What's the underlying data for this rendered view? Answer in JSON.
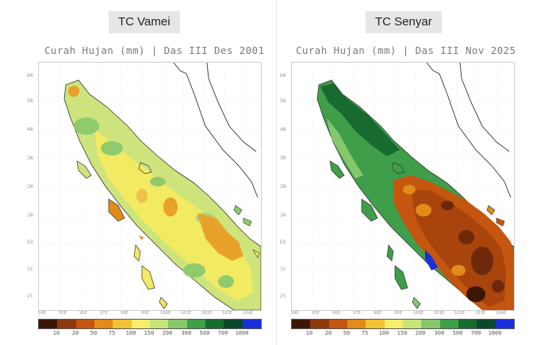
{
  "panels": [
    {
      "badge": "TC Vamei",
      "subtitle": "Curah Hujan (mm) | Das III Des 2001",
      "lat_labels": [
        "6N",
        "5N",
        "4N",
        "3N",
        "2N",
        "1N",
        "EQ",
        "1S",
        "2S"
      ],
      "lon_labels": [
        "94E",
        "95E",
        "96E",
        "97E",
        "98E",
        "99E",
        "100E",
        "101E",
        "102E",
        "103E",
        "104E"
      ]
    },
    {
      "badge": "TC Senyar",
      "subtitle": "Curah Hujan (mm) | Das III Nov 2025",
      "lat_labels": [
        "6N",
        "5N",
        "4N",
        "3N",
        "2N",
        "1N",
        "EQ",
        "1S",
        "2S"
      ],
      "lon_labels": [
        "94E",
        "95E",
        "96E",
        "97E",
        "98E",
        "99E",
        "100E",
        "101E",
        "102E",
        "103E",
        "104E"
      ]
    }
  ],
  "colorbar": {
    "ticks": [
      "10",
      "20",
      "50",
      "75",
      "100",
      "150",
      "200",
      "300",
      "500",
      "700",
      "1000"
    ],
    "colors": [
      "#3d1607",
      "#8c3a0c",
      "#c4560f",
      "#e08b1a",
      "#f1c232",
      "#f4ee6a",
      "#c9e47a",
      "#86c76b",
      "#3f9e4a",
      "#186b2e",
      "#0a4a2c",
      "#1a2edb"
    ]
  }
}
